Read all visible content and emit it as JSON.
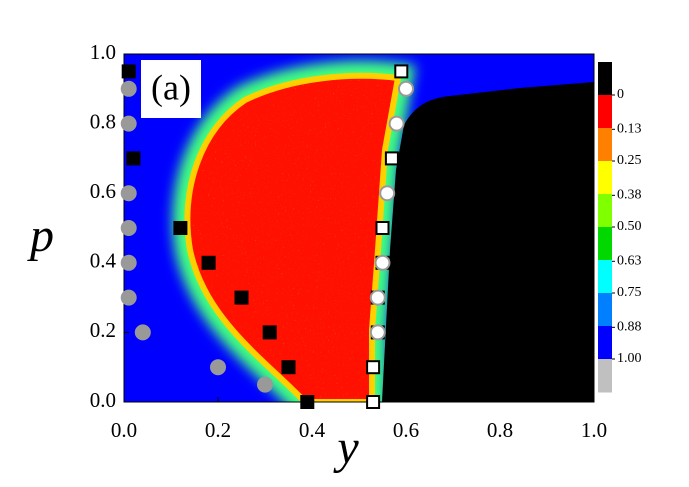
{
  "chart_data": {
    "type": "heatmap-scatter",
    "panel_label": "(a)",
    "x_label": "y",
    "y_label": "p",
    "xlim": [
      0,
      1
    ],
    "ylim": [
      0,
      1
    ],
    "xticks": [
      {
        "value": 0,
        "label": "0.0"
      },
      0.2,
      0.4,
      0.6,
      0.8,
      {
        "value": 1,
        "label": "1.0"
      }
    ],
    "yticks": [
      {
        "value": 0,
        "label": "0.0"
      },
      0.2,
      0.4,
      0.6,
      0.8,
      {
        "value": 1,
        "label": "1.0"
      }
    ],
    "colorbar": {
      "colors": [
        "#000000",
        "#ff0000",
        "#ff8000",
        "#ffff00",
        "#80ff00",
        "#00d800",
        "#00ffff",
        "#0080ff",
        "#0000ff",
        "#c0c0c0"
      ],
      "ticks": [
        0,
        0.13,
        0.25,
        0.38,
        {
          "value": 0.5,
          "label": "0.50"
        },
        0.63,
        0.75,
        0.88,
        {
          "value": 1,
          "label": "1.00"
        }
      ]
    },
    "series": [
      {
        "marker": "square",
        "color": "#000000",
        "edge": "#000000",
        "x": [
          0.01,
          0.02,
          0.12,
          0.18,
          0.25,
          0.31,
          0.35,
          0.39
        ],
        "values": [
          0.95,
          0.7,
          0.5,
          0.4,
          0.3,
          0.2,
          0.1,
          0.0
        ]
      },
      {
        "marker": "circle",
        "color": "#999999",
        "edge": "#999999",
        "x": [
          0.01,
          0.01,
          0.01,
          0.01,
          0.01,
          0.01,
          0.04,
          0.2,
          0.3
        ],
        "values": [
          0.9,
          0.8,
          0.6,
          0.5,
          0.4,
          0.3,
          0.2,
          0.1,
          0.05
        ]
      },
      {
        "marker": "square",
        "color": "#ffffff",
        "edge": "#000000",
        "x": [
          0.59,
          0.57,
          0.55,
          0.55,
          0.54,
          0.54,
          0.53,
          0.53
        ],
        "values": [
          0.95,
          0.7,
          0.5,
          0.4,
          0.3,
          0.2,
          0.1,
          0.0
        ]
      },
      {
        "marker": "circle",
        "color": "#ffffff",
        "edge": "#999999",
        "x": [
          0.6,
          0.58,
          0.56,
          0.55,
          0.54,
          0.54
        ],
        "values": [
          0.9,
          0.8,
          0.6,
          0.4,
          0.3,
          0.2
        ]
      }
    ]
  }
}
